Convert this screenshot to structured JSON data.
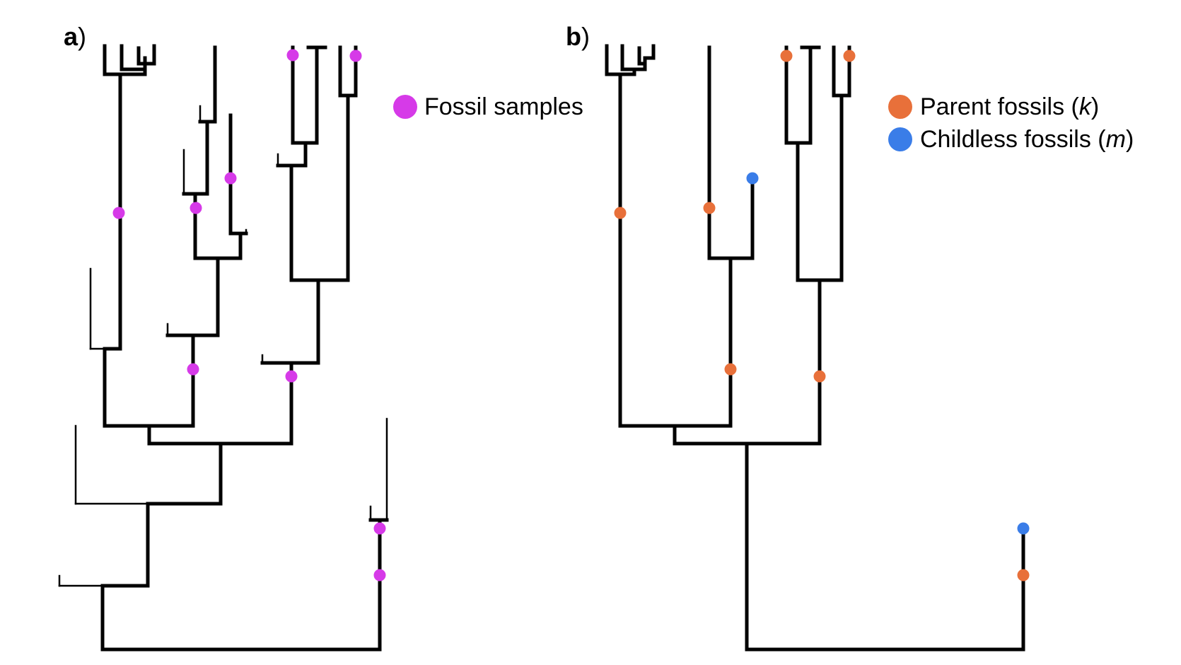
{
  "panels": [
    {
      "letter": "a",
      "paren": ")",
      "legend": [
        {
          "label": "Fossil samples",
          "color": "#d63ae8"
        }
      ]
    },
    {
      "letter": "b",
      "paren": ")",
      "legend": [
        {
          "label": "Parent fossils (",
          "italic": "k",
          "close": ")",
          "color": "#e8703a"
        },
        {
          "label": "Childless fossils (",
          "italic": "m",
          "close": ")",
          "color": "#3a7de8"
        }
      ]
    }
  ],
  "colors": {
    "fossil": "#d63ae8",
    "parent": "#e8703a",
    "childless": "#3a7de8",
    "branch": "#000000"
  }
}
